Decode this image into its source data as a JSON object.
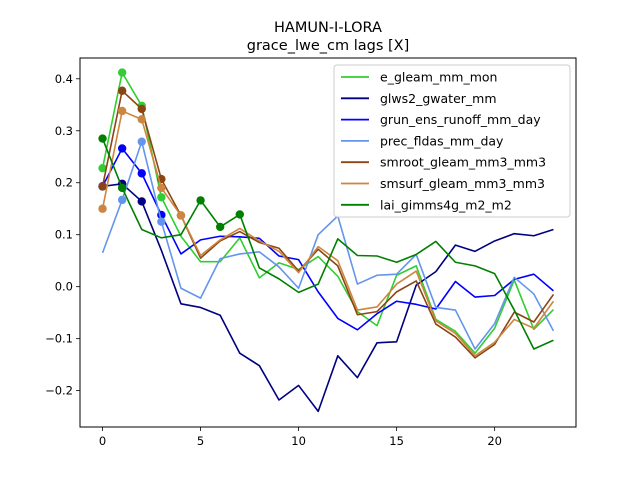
{
  "chart_data": {
    "type": "line",
    "title": "HAMUN-I-LORA",
    "subtitle": "grace_lwe_cm lags [X]",
    "xlabel": "",
    "ylabel": "",
    "xlim": [
      -1.15,
      24.15
    ],
    "ylim": [
      -0.27,
      0.44
    ],
    "xticks": [
      0,
      5,
      10,
      15,
      20
    ],
    "yticks": [
      -0.2,
      -0.1,
      0.0,
      0.1,
      0.2,
      0.3,
      0.4
    ],
    "ytick_labels": [
      "−0.2",
      "−0.1",
      "0.0",
      "0.1",
      "0.2",
      "0.3",
      "0.4"
    ],
    "grid": false,
    "legend_position": "upper right",
    "x": [
      0,
      1,
      2,
      3,
      4,
      5,
      6,
      7,
      8,
      9,
      10,
      11,
      12,
      13,
      14,
      15,
      16,
      17,
      18,
      19,
      20,
      21,
      22,
      23
    ],
    "series": [
      {
        "name": "e_gleam_mm_mon",
        "color": "#32cd32",
        "values": [
          0.228,
          0.412,
          0.348,
          0.172,
          0.097,
          0.048,
          0.048,
          0.094,
          0.017,
          0.046,
          0.033,
          0.058,
          0.02,
          -0.048,
          -0.075,
          0.022,
          0.04,
          -0.063,
          -0.086,
          -0.128,
          -0.08,
          0.013,
          -0.082,
          -0.044
        ],
        "markers": [
          0,
          1,
          2,
          3
        ]
      },
      {
        "name": "glws2_gwater_mm",
        "color": "#000080",
        "values": [
          0.193,
          0.198,
          0.164,
          0.07,
          -0.033,
          -0.04,
          -0.055,
          -0.128,
          -0.152,
          -0.218,
          -0.19,
          -0.24,
          -0.133,
          -0.175,
          -0.108,
          -0.106,
          0.003,
          0.029,
          0.08,
          0.068,
          0.088,
          0.102,
          0.098,
          0.11
        ],
        "markers": [
          0,
          1,
          2
        ]
      },
      {
        "name": "grun_ens_runoff_mm_day",
        "color": "#0000ff",
        "values": [
          0.193,
          0.266,
          0.218,
          0.138,
          0.063,
          0.09,
          0.097,
          0.096,
          0.093,
          0.059,
          0.052,
          -0.01,
          -0.061,
          -0.083,
          -0.052,
          -0.028,
          -0.034,
          -0.043,
          0.01,
          -0.02,
          -0.017,
          0.014,
          0.024,
          -0.008
        ],
        "markers": [
          0,
          1,
          2,
          3
        ]
      },
      {
        "name": "prec_fldas_mm_day",
        "color": "#6495ed",
        "values": [
          0.065,
          0.167,
          0.279,
          0.125,
          -0.003,
          -0.022,
          0.054,
          0.063,
          0.067,
          0.038,
          -0.003,
          0.1,
          0.136,
          0.005,
          0.022,
          0.024,
          0.062,
          -0.04,
          -0.045,
          -0.12,
          -0.071,
          0.018,
          -0.014,
          -0.085
        ],
        "markers": [
          1,
          2,
          3
        ]
      },
      {
        "name": "smroot_gleam_mm3_mm3",
        "color": "#8b4513",
        "values": [
          0.193,
          0.377,
          0.342,
          0.207,
          0.137,
          0.055,
          0.088,
          0.106,
          0.085,
          0.074,
          0.03,
          0.072,
          0.04,
          -0.054,
          -0.048,
          -0.01,
          0.011,
          -0.072,
          -0.097,
          -0.137,
          -0.111,
          -0.049,
          -0.068,
          -0.015
        ],
        "markers": [
          0,
          1,
          2,
          3,
          4
        ]
      },
      {
        "name": "smsurf_gleam_mm3_mm3",
        "color": "#cd853f",
        "values": [
          0.15,
          0.338,
          0.322,
          0.19,
          0.137,
          0.06,
          0.09,
          0.112,
          0.088,
          0.068,
          0.027,
          0.077,
          0.05,
          -0.045,
          -0.039,
          0.005,
          0.03,
          -0.066,
          -0.09,
          -0.133,
          -0.107,
          -0.063,
          -0.08,
          -0.028
        ],
        "markers": [
          0,
          1,
          2,
          3,
          4
        ]
      },
      {
        "name": "lai_gimms4g_m2_m2",
        "color": "#008000",
        "values": [
          0.285,
          0.19,
          0.11,
          0.094,
          0.1,
          0.166,
          0.115,
          0.139,
          0.036,
          0.015,
          -0.011,
          0.005,
          0.092,
          0.06,
          0.059,
          0.047,
          0.062,
          0.087,
          0.047,
          0.04,
          0.025,
          -0.045,
          -0.12,
          -0.103
        ],
        "markers": [
          0,
          1,
          5,
          6,
          7
        ]
      }
    ]
  }
}
